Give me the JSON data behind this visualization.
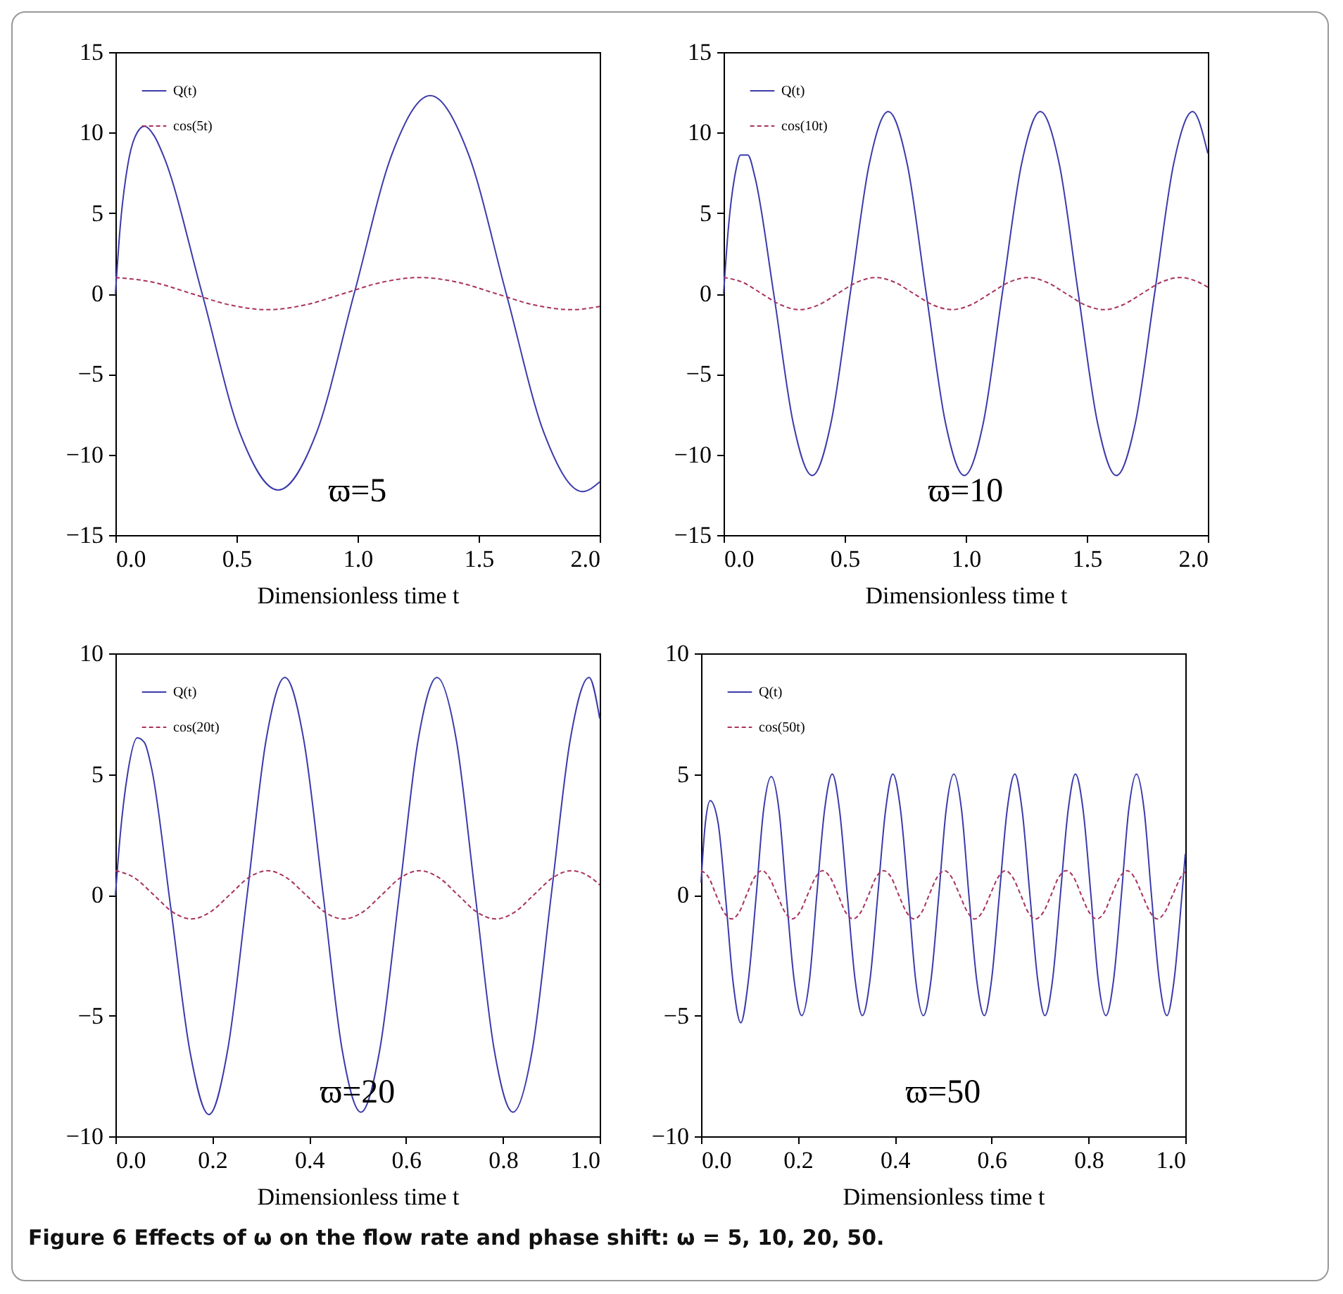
{
  "chart_data": [
    {
      "type": "line",
      "xlabel": "Dimensionless time t",
      "xlim": [
        0,
        2
      ],
      "xticks": [
        {
          "value": 0,
          "label": "0.0"
        },
        {
          "value": 0.5,
          "label": "0.5"
        },
        {
          "value": 1,
          "label": "1.0"
        },
        {
          "value": 1.5,
          "label": "1.5"
        },
        {
          "value": 2,
          "label": "2.0"
        }
      ],
      "ylim": [
        -15,
        15
      ],
      "yticks": [
        -15,
        -10,
        -5,
        0,
        5,
        10,
        15
      ],
      "grid": false,
      "legend": "top left",
      "annotations": [
        "ϖ=5"
      ],
      "series": [
        {
          "name": "Q(t)",
          "color": "#3b3bab",
          "line_style": "solid",
          "x": [
            0,
            0.02,
            0.05,
            0.08,
            0.12,
            0.16,
            0.2,
            0.358,
            0.515,
            0.672,
            0.829,
            0.986,
            1.143,
            1.3,
            1.457,
            1.614,
            1.771,
            1.929,
            2.0
          ],
          "values": [
            0,
            4.2,
            7.9,
            9.7,
            10.4,
            9.8,
            8.5,
            0,
            -8.7,
            -12.2,
            -8.7,
            0,
            8.7,
            12.3,
            8.7,
            0,
            -8.7,
            -12.3,
            -11.7
          ]
        },
        {
          "name": "cos(5t)",
          "color": "#a8325f",
          "line_style": "dashed",
          "x": [
            0,
            0.157,
            0.314,
            0.471,
            0.628,
            0.785,
            0.942,
            1.1,
            1.257,
            1.414,
            1.571,
            1.728,
            1.885,
            2.0
          ],
          "values": [
            1,
            0.7,
            0,
            -0.7,
            -1,
            -0.7,
            0,
            0.7,
            1,
            0.7,
            0,
            -0.7,
            -1,
            -0.8
          ]
        }
      ]
    },
    {
      "type": "line",
      "xlabel": "Dimensionless time t",
      "xlim": [
        0,
        2
      ],
      "xticks": [
        {
          "value": 0,
          "label": "0.0"
        },
        {
          "value": 0.5,
          "label": "0.5"
        },
        {
          "value": 1,
          "label": "1.0"
        },
        {
          "value": 1.5,
          "label": "1.5"
        },
        {
          "value": 2,
          "label": "2.0"
        }
      ],
      "ylim": [
        -15,
        15
      ],
      "yticks": [
        -15,
        -10,
        -5,
        0,
        5,
        10,
        15
      ],
      "grid": false,
      "legend": "top left",
      "annotations": [
        "ϖ=10"
      ],
      "series": [
        {
          "name": "Q(t)",
          "color": "#3b3bab",
          "line_style": "solid",
          "x": [
            0,
            0.02,
            0.05,
            0.07,
            0.1,
            0.13,
            0.209,
            0.287,
            0.366,
            0.444,
            0.523,
            0.601,
            0.68,
            0.759,
            0.837,
            0.916,
            0.994,
            1.073,
            1.151,
            1.23,
            1.308,
            1.387,
            1.465,
            1.544,
            1.622,
            1.701,
            1.78,
            1.858,
            1.937,
            2.0
          ],
          "values": [
            0,
            4.1,
            7.6,
            8.6,
            8.6,
            7.2,
            -0.2,
            -8.0,
            -11.3,
            -8.0,
            0,
            8.0,
            11.3,
            8.0,
            0,
            -8.0,
            -11.3,
            -8.0,
            0,
            8.0,
            11.3,
            8.0,
            0,
            -8.0,
            -11.3,
            -8.0,
            0,
            8.0,
            11.3,
            8.7
          ]
        },
        {
          "name": "cos(10t)",
          "color": "#a8325f",
          "line_style": "dashed",
          "x": [
            0,
            0.079,
            0.157,
            0.236,
            0.314,
            0.393,
            0.471,
            0.55,
            0.628,
            0.707,
            0.785,
            0.864,
            0.942,
            1.021,
            1.1,
            1.178,
            1.257,
            1.335,
            1.414,
            1.492,
            1.571,
            1.649,
            1.728,
            1.806,
            1.885,
            1.963,
            2.0
          ],
          "values": [
            1,
            0.7,
            0,
            -0.7,
            -1,
            -0.7,
            0,
            0.7,
            1,
            0.7,
            0,
            -0.7,
            -1,
            -0.7,
            0,
            0.7,
            1,
            0.7,
            0,
            -0.7,
            -1,
            -0.7,
            0,
            0.7,
            1,
            0.7,
            0.4
          ]
        }
      ]
    },
    {
      "type": "line",
      "xlabel": "Dimensionless time t",
      "xlim": [
        0,
        1
      ],
      "xticks": [
        {
          "value": 0,
          "label": "0.0"
        },
        0.2,
        0.4,
        0.6,
        0.8,
        {
          "value": 1,
          "label": "1.0"
        }
      ],
      "ylim": [
        -10,
        10
      ],
      "yticks": [
        -10,
        -5,
        0,
        5,
        10
      ],
      "grid": false,
      "legend": "top left",
      "annotations": [
        "ϖ=20"
      ],
      "series": [
        {
          "name": "Q(t)",
          "color": "#3b3bab",
          "line_style": "solid",
          "x": [
            0,
            0.01,
            0.025,
            0.045,
            0.06,
            0.075,
            0.114,
            0.154,
            0.193,
            0.232,
            0.272,
            0.311,
            0.35,
            0.389,
            0.429,
            0.468,
            0.507,
            0.546,
            0.586,
            0.625,
            0.664,
            0.704,
            0.743,
            0.782,
            0.821,
            0.861,
            0.9,
            0.939,
            0.978,
            1.0
          ],
          "values": [
            0,
            2.5,
            5.0,
            6.5,
            6.3,
            5.2,
            -0.5,
            -6.5,
            -9.1,
            -6.4,
            0,
            6.4,
            9.0,
            6.4,
            0,
            -6.4,
            -9.0,
            -6.4,
            0,
            6.4,
            9.0,
            6.4,
            0,
            -6.4,
            -9.0,
            -6.4,
            0,
            6.4,
            9.0,
            7.3
          ]
        },
        {
          "name": "cos(20t)",
          "color": "#a8325f",
          "line_style": "dashed",
          "x": [
            0,
            0.039,
            0.079,
            0.118,
            0.157,
            0.196,
            0.236,
            0.275,
            0.314,
            0.353,
            0.393,
            0.432,
            0.471,
            0.511,
            0.55,
            0.589,
            0.628,
            0.668,
            0.707,
            0.746,
            0.785,
            0.825,
            0.864,
            0.903,
            0.942,
            0.982,
            1.0
          ],
          "values": [
            1,
            0.71,
            0,
            -0.71,
            -1,
            -0.71,
            0,
            0.71,
            1,
            0.71,
            0,
            -0.71,
            -1,
            -0.71,
            0,
            0.71,
            1,
            0.71,
            0,
            -0.71,
            -1,
            -0.71,
            0,
            0.71,
            1,
            0.71,
            0.41
          ]
        }
      ]
    },
    {
      "type": "line",
      "xlabel": "Dimensionless time t",
      "xlim": [
        0,
        1
      ],
      "xticks": [
        {
          "value": 0,
          "label": "0.0"
        },
        0.2,
        0.4,
        0.6,
        0.8,
        {
          "value": 1,
          "label": "1.0"
        }
      ],
      "ylim": [
        -10,
        10
      ],
      "yticks": [
        -10,
        -5,
        0,
        5,
        10
      ],
      "grid": false,
      "legend": "top left",
      "annotations": [
        "ϖ=50",
        "Figure 6  Effects of ω on the flow rate and phase shift: ω = 5, 10, 20, 50."
      ],
      "series": [
        {
          "name": "Q(t)",
          "color": "#3b3bab",
          "line_style": "solid",
          "x": [
            0,
            0.008,
            0.019,
            0.035,
            0.051,
            0.066,
            0.082,
            0.098,
            0.114,
            0.129,
            0.145,
            0.161,
            0.176,
            0.192,
            0.208,
            0.224,
            0.239,
            0.255,
            0.271,
            0.286,
            0.302,
            0.318,
            0.333,
            0.349,
            0.365,
            0.381,
            0.396,
            0.412,
            0.428,
            0.443,
            0.459,
            0.475,
            0.491,
            0.506,
            0.522,
            0.538,
            0.553,
            0.569,
            0.585,
            0.6,
            0.616,
            0.632,
            0.648,
            0.663,
            0.679,
            0.695,
            0.71,
            0.726,
            0.742,
            0.758,
            0.773,
            0.789,
            0.805,
            0.82,
            0.836,
            0.852,
            0.868,
            0.883,
            0.899,
            0.915,
            0.93,
            0.946,
            0.962,
            0.977,
            0.993,
            1.0
          ],
          "values": [
            0.5,
            2.8,
            3.9,
            3.0,
            -0.2,
            -3.6,
            -5.3,
            -3.5,
            0,
            3.5,
            4.9,
            3.5,
            0,
            -3.5,
            -5.0,
            -3.5,
            0,
            3.5,
            5.0,
            3.5,
            0,
            -3.5,
            -5.0,
            -3.5,
            0,
            3.5,
            5.0,
            3.5,
            0,
            -3.5,
            -5.0,
            -3.5,
            0,
            3.5,
            5.0,
            3.5,
            0,
            -3.5,
            -5.0,
            -3.5,
            0,
            3.5,
            5.0,
            3.5,
            0,
            -3.5,
            -5.0,
            -3.5,
            0,
            3.5,
            5.0,
            3.5,
            0,
            -3.5,
            -5.0,
            -3.5,
            0,
            3.5,
            5.0,
            3.5,
            0,
            -3.5,
            -5.0,
            -3.5,
            0,
            1.7
          ]
        },
        {
          "name": "cos(50t)",
          "color": "#a8325f",
          "line_style": "dashed",
          "x": [
            0,
            0.016,
            0.031,
            0.047,
            0.063,
            0.079,
            0.094,
            0.11,
            0.126,
            0.141,
            0.157,
            0.173,
            0.188,
            0.204,
            0.22,
            0.236,
            0.251,
            0.267,
            0.283,
            0.298,
            0.314,
            0.33,
            0.346,
            0.361,
            0.377,
            0.393,
            0.408,
            0.424,
            0.44,
            0.456,
            0.471,
            0.487,
            0.503,
            0.518,
            0.534,
            0.55,
            0.565,
            0.581,
            0.597,
            0.613,
            0.628,
            0.644,
            0.66,
            0.675,
            0.691,
            0.707,
            0.723,
            0.738,
            0.754,
            0.77,
            0.785,
            0.801,
            0.817,
            0.833,
            0.848,
            0.864,
            0.88,
            0.895,
            0.911,
            0.927,
            0.942,
            0.958,
            0.974,
            0.99,
            1.0
          ],
          "values": [
            1,
            0.71,
            0,
            -0.71,
            -1,
            -0.71,
            0,
            0.71,
            1,
            0.71,
            0,
            -0.71,
            -1,
            -0.71,
            0,
            0.71,
            1,
            0.71,
            0,
            -0.71,
            -1,
            -0.71,
            0,
            0.71,
            1,
            0.71,
            0,
            -0.71,
            -1,
            -0.71,
            0,
            0.71,
            1,
            0.71,
            0,
            -0.71,
            -1,
            -0.71,
            0,
            0.71,
            1,
            0.71,
            0,
            -0.71,
            -1,
            -0.71,
            0,
            0.71,
            1,
            0.71,
            0,
            -0.71,
            -1,
            -0.71,
            0,
            0.71,
            1,
            0.71,
            0,
            -0.71,
            -1,
            -0.71,
            0,
            0.71,
            0.96
          ]
        }
      ]
    }
  ]
}
